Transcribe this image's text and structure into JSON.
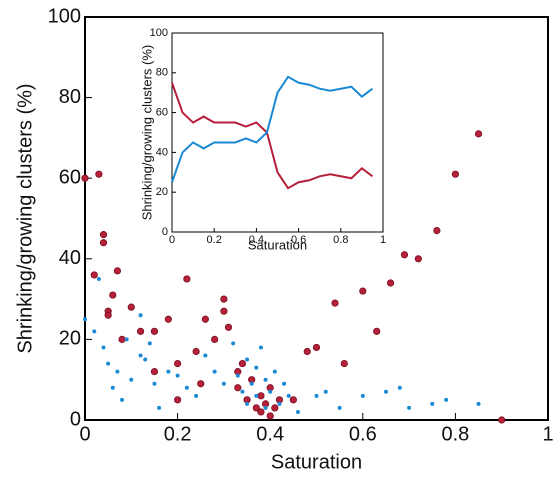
{
  "chart_data": [
    {
      "type": "scatter",
      "xlabel": "Saturation",
      "ylabel": "Shrinking/growing clusters (%)",
      "xlim": [
        0,
        1
      ],
      "ylim": [
        0,
        100
      ],
      "xticks": [
        0,
        0.2,
        0.4,
        0.6,
        0.8,
        1
      ],
      "yticks": [
        0,
        20,
        40,
        60,
        80,
        100
      ],
      "series": [
        {
          "color": "#b5203a",
          "x": [
            0,
            0.03,
            0.04,
            0.04,
            0.02,
            0.05,
            0.05,
            0.07,
            0.06,
            0.08,
            0.1,
            0.12,
            0.15,
            0.15,
            0.18,
            0.2,
            0.22,
            0.24,
            0.26,
            0.28,
            0.3,
            0.3,
            0.31,
            0.2,
            0.25,
            0.33,
            0.33,
            0.34,
            0.35,
            0.36,
            0.37,
            0.38,
            0.38,
            0.39,
            0.4,
            0.4,
            0.41,
            0.42,
            0.45,
            0.48,
            0.5,
            0.54,
            0.56,
            0.6,
            0.63,
            0.66,
            0.69,
            0.72,
            0.76,
            0.8,
            0.85,
            0.9
          ],
          "y": [
            60,
            61,
            46,
            44,
            36,
            27,
            26,
            37,
            31,
            20,
            28,
            22,
            22,
            12,
            25,
            14,
            35,
            17,
            25,
            20,
            30,
            27,
            23,
            5,
            9,
            12,
            8,
            14,
            5,
            10,
            3,
            2,
            6,
            4,
            1,
            8,
            3,
            5,
            5,
            17,
            18,
            29,
            14,
            32,
            22,
            34,
            41,
            40,
            47,
            61,
            71,
            0
          ]
        },
        {
          "color": "#1a8ad4",
          "x": [
            0,
            0.02,
            0.04,
            0.05,
            0.06,
            0.07,
            0.08,
            0.1,
            0.12,
            0.13,
            0.14,
            0.15,
            0.16,
            0.18,
            0.2,
            0.22,
            0.24,
            0.26,
            0.28,
            0.3,
            0.32,
            0.33,
            0.34,
            0.35,
            0.35,
            0.36,
            0.37,
            0.37,
            0.38,
            0.39,
            0.39,
            0.4,
            0.41,
            0.42,
            0.43,
            0.44,
            0.46,
            0.5,
            0.52,
            0.55,
            0.6,
            0.65,
            0.68,
            0.7,
            0.75,
            0.78,
            0.85,
            0.12,
            0.09,
            0.03
          ],
          "y": [
            25,
            22,
            18,
            14,
            8,
            12,
            5,
            10,
            16,
            15,
            19,
            9,
            3,
            12,
            11,
            8,
            6,
            16,
            12,
            9,
            19,
            11,
            7,
            15,
            4,
            9,
            13,
            6,
            18,
            10,
            3,
            7,
            12,
            4,
            9,
            6,
            2,
            6,
            7,
            3,
            6,
            7,
            8,
            3,
            4,
            5,
            4,
            26,
            20,
            35
          ]
        }
      ]
    },
    {
      "type": "line",
      "xlabel": "Saturation",
      "ylabel": "Shrinking/growing clusters (%)",
      "xlim": [
        0,
        1
      ],
      "ylim": [
        0,
        100
      ],
      "xticks": [
        0,
        0.2,
        0.4,
        0.6,
        0.8,
        1
      ],
      "yticks": [
        0,
        20,
        40,
        60,
        80,
        100
      ],
      "x": [
        0,
        0.05,
        0.1,
        0.15,
        0.2,
        0.25,
        0.3,
        0.35,
        0.4,
        0.45,
        0.5,
        0.55,
        0.6,
        0.65,
        0.7,
        0.75,
        0.8,
        0.85,
        0.9,
        0.95
      ],
      "series": [
        {
          "color": "#b5203a",
          "values": [
            75,
            60,
            55,
            58,
            55,
            55,
            55,
            53,
            55,
            50,
            30,
            22,
            25,
            26,
            28,
            29,
            28,
            27,
            32,
            28
          ]
        },
        {
          "color": "#1a8ad4",
          "values": [
            25,
            40,
            45,
            42,
            45,
            45,
            45,
            47,
            45,
            50,
            70,
            78,
            75,
            74,
            72,
            71,
            72,
            73,
            68,
            72
          ]
        }
      ]
    }
  ]
}
